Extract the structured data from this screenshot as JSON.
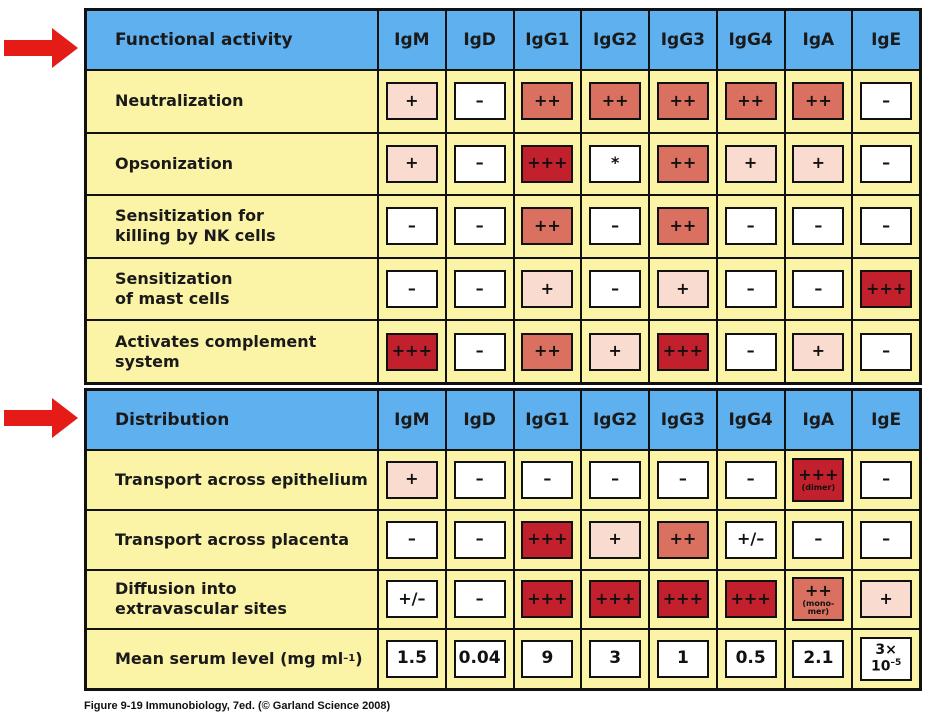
{
  "colors": {
    "header_bg": "#5fb0ef",
    "row_bg": "#fbf3a6",
    "level_none": "#ffffff",
    "level_low": "#f9dbd0",
    "level_mid": "#d97060",
    "level_high": "#c1202c",
    "arrow": "#e41b17"
  },
  "isotypes": [
    "IgM",
    "IgD",
    "IgG1",
    "IgG2",
    "IgG3",
    "IgG4",
    "IgA",
    "IgE"
  ],
  "functional": {
    "title": "Functional activity",
    "rows": [
      {
        "label": "Neutralization",
        "cells": [
          {
            "text": "+",
            "level": "low"
          },
          {
            "text": "–",
            "level": "none"
          },
          {
            "text": "++",
            "level": "mid"
          },
          {
            "text": "++",
            "level": "mid"
          },
          {
            "text": "++",
            "level": "mid"
          },
          {
            "text": "++",
            "level": "mid"
          },
          {
            "text": "++",
            "level": "mid"
          },
          {
            "text": "–",
            "level": "none"
          }
        ]
      },
      {
        "label": "Opsonization",
        "cells": [
          {
            "text": "+",
            "level": "low"
          },
          {
            "text": "–",
            "level": "none"
          },
          {
            "text": "+++",
            "level": "high"
          },
          {
            "text": "*",
            "level": "none"
          },
          {
            "text": "++",
            "level": "mid"
          },
          {
            "text": "+",
            "level": "low"
          },
          {
            "text": "+",
            "level": "low"
          },
          {
            "text": "–",
            "level": "none"
          }
        ]
      },
      {
        "label": "Sensitization for\nkilling by NK cells",
        "cells": [
          {
            "text": "–",
            "level": "none"
          },
          {
            "text": "–",
            "level": "none"
          },
          {
            "text": "++",
            "level": "mid"
          },
          {
            "text": "–",
            "level": "none"
          },
          {
            "text": "++",
            "level": "mid"
          },
          {
            "text": "–",
            "level": "none"
          },
          {
            "text": "–",
            "level": "none"
          },
          {
            "text": "–",
            "level": "none"
          }
        ]
      },
      {
        "label": "Sensitization\nof mast cells",
        "cells": [
          {
            "text": "–",
            "level": "none"
          },
          {
            "text": "–",
            "level": "none"
          },
          {
            "text": "+",
            "level": "low"
          },
          {
            "text": "–",
            "level": "none"
          },
          {
            "text": "+",
            "level": "low"
          },
          {
            "text": "–",
            "level": "none"
          },
          {
            "text": "–",
            "level": "none"
          },
          {
            "text": "+++",
            "level": "high"
          }
        ]
      },
      {
        "label": "Activates complement\nsystem",
        "cells": [
          {
            "text": "+++",
            "level": "high"
          },
          {
            "text": "–",
            "level": "none"
          },
          {
            "text": "++",
            "level": "mid"
          },
          {
            "text": "+",
            "level": "low"
          },
          {
            "text": "+++",
            "level": "high"
          },
          {
            "text": "–",
            "level": "none"
          },
          {
            "text": "+",
            "level": "low"
          },
          {
            "text": "–",
            "level": "none"
          }
        ]
      }
    ]
  },
  "distribution": {
    "title": "Distribution",
    "rows": [
      {
        "label": "Transport across epithelium",
        "cells": [
          {
            "text": "+",
            "level": "low"
          },
          {
            "text": "–",
            "level": "none"
          },
          {
            "text": "–",
            "level": "none"
          },
          {
            "text": "–",
            "level": "none"
          },
          {
            "text": "–",
            "level": "none"
          },
          {
            "text": "–",
            "level": "none"
          },
          {
            "text": "+++",
            "sub": "(dimer)",
            "level": "high"
          },
          {
            "text": "–",
            "level": "none"
          }
        ]
      },
      {
        "label": "Transport across placenta",
        "cells": [
          {
            "text": "–",
            "level": "none"
          },
          {
            "text": "–",
            "level": "none"
          },
          {
            "text": "+++",
            "level": "high"
          },
          {
            "text": "+",
            "level": "low"
          },
          {
            "text": "++",
            "level": "mid"
          },
          {
            "text": "+/–",
            "level": "none"
          },
          {
            "text": "–",
            "level": "none"
          },
          {
            "text": "–",
            "level": "none"
          }
        ]
      },
      {
        "label": "Diffusion into\nextravascular sites",
        "cells": [
          {
            "text": "+/–",
            "level": "none"
          },
          {
            "text": "–",
            "level": "none"
          },
          {
            "text": "+++",
            "level": "high"
          },
          {
            "text": "+++",
            "level": "high"
          },
          {
            "text": "+++",
            "level": "high"
          },
          {
            "text": "+++",
            "level": "high"
          },
          {
            "text": "++",
            "sub": "(mono-\nmer)",
            "level": "mid"
          },
          {
            "text": "+",
            "level": "low"
          }
        ]
      }
    ],
    "serum": {
      "label": "Mean serum level (mg ml",
      "label_exp": "–1",
      "label_close": ")",
      "values": [
        "1.5",
        "0.04",
        "9",
        "3",
        "1",
        "0.5",
        "2.1"
      ],
      "ige_base": "3×",
      "ige_mant": "10",
      "ige_exp": "–5"
    }
  },
  "caption": "Figure 9-19  Immunobiology, 7ed. (© Garland Science 2008)"
}
